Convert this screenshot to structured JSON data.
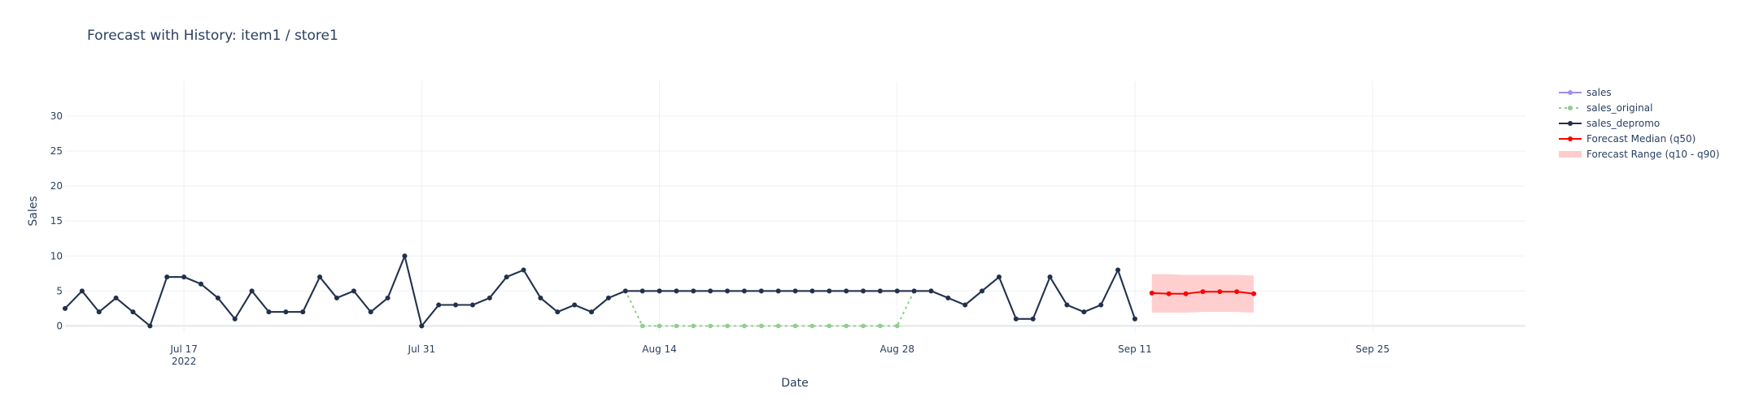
{
  "chart_data": {
    "type": "line",
    "title": "Forecast with History: item1 / store1",
    "xlabel": "Date",
    "ylabel": "Sales",
    "xlim": [
      "2022-07-10",
      "2022-10-04"
    ],
    "ylim": [
      -1,
      35
    ],
    "y_ticks": [
      0,
      5,
      10,
      15,
      20,
      25,
      30
    ],
    "x_ticks": [
      {
        "date": "2022-07-17",
        "label": "Jul 17",
        "sublabel": "2022"
      },
      {
        "date": "2022-07-31",
        "label": "Jul 31",
        "sublabel": ""
      },
      {
        "date": "2022-08-14",
        "label": "Aug 14",
        "sublabel": ""
      },
      {
        "date": "2022-08-28",
        "label": "Aug 28",
        "sublabel": ""
      },
      {
        "date": "2022-09-11",
        "label": "Sep 11",
        "sublabel": ""
      },
      {
        "date": "2022-09-25",
        "label": "Sep 25",
        "sublabel": ""
      }
    ],
    "grid": true,
    "legend_position": "right",
    "history_dates": [
      "2022-07-10",
      "2022-07-11",
      "2022-07-12",
      "2022-07-13",
      "2022-07-14",
      "2022-07-15",
      "2022-07-16",
      "2022-07-17",
      "2022-07-18",
      "2022-07-19",
      "2022-07-20",
      "2022-07-21",
      "2022-07-22",
      "2022-07-23",
      "2022-07-24",
      "2022-07-25",
      "2022-07-26",
      "2022-07-27",
      "2022-07-28",
      "2022-07-29",
      "2022-07-30",
      "2022-07-31",
      "2022-08-01",
      "2022-08-02",
      "2022-08-03",
      "2022-08-04",
      "2022-08-05",
      "2022-08-06",
      "2022-08-07",
      "2022-08-08",
      "2022-08-09",
      "2022-08-10",
      "2022-08-11",
      "2022-08-12",
      "2022-08-13",
      "2022-08-14",
      "2022-08-15",
      "2022-08-16",
      "2022-08-17",
      "2022-08-18",
      "2022-08-19",
      "2022-08-20",
      "2022-08-21",
      "2022-08-22",
      "2022-08-23",
      "2022-08-24",
      "2022-08-25",
      "2022-08-26",
      "2022-08-27",
      "2022-08-28",
      "2022-08-29",
      "2022-08-30",
      "2022-08-31",
      "2022-09-01",
      "2022-09-02",
      "2022-09-03",
      "2022-09-04",
      "2022-09-05",
      "2022-09-06",
      "2022-09-07",
      "2022-09-08",
      "2022-09-09",
      "2022-09-10",
      "2022-09-11"
    ],
    "forecast_dates": [
      "2022-09-12",
      "2022-09-13",
      "2022-09-14",
      "2022-09-15",
      "2022-09-16",
      "2022-09-17",
      "2022-09-18"
    ],
    "series": [
      {
        "name": "sales",
        "color": "#9d90f0",
        "dash": "solid",
        "values": [
          2.5,
          5,
          2,
          4,
          2,
          0,
          7,
          7,
          6,
          4,
          1,
          5,
          2,
          2,
          2,
          7,
          4,
          5,
          2,
          4,
          10,
          0,
          3,
          3,
          3,
          4,
          7,
          8,
          4,
          2,
          3,
          2,
          4,
          5,
          5,
          5,
          5,
          5,
          5,
          5,
          5,
          5,
          5,
          5,
          5,
          5,
          5,
          5,
          5,
          5,
          5,
          5,
          4,
          3,
          5,
          7,
          1,
          1,
          7,
          3,
          2,
          3,
          8,
          1
        ]
      },
      {
        "name": "sales_original",
        "color": "#8fce8f",
        "dash": "dot",
        "values": [
          2.5,
          5,
          2,
          4,
          2,
          0,
          7,
          7,
          6,
          4,
          1,
          5,
          2,
          2,
          2,
          7,
          4,
          5,
          2,
          4,
          10,
          0,
          3,
          3,
          3,
          4,
          7,
          8,
          4,
          2,
          3,
          2,
          4,
          5,
          0,
          0,
          0,
          0,
          0,
          0,
          0,
          0,
          0,
          0,
          0,
          0,
          0,
          0,
          0,
          0,
          5,
          5,
          4,
          3,
          5,
          7,
          1,
          1,
          7,
          3,
          2,
          3,
          8,
          1
        ]
      },
      {
        "name": "sales_depromo",
        "color": "#22314a",
        "dash": "solid",
        "values": [
          2.5,
          5,
          2,
          4,
          2,
          0,
          7,
          7,
          6,
          4,
          1,
          5,
          2,
          2,
          2,
          7,
          4,
          5,
          2,
          4,
          10,
          0,
          3,
          3,
          3,
          4,
          7,
          8,
          4,
          2,
          3,
          2,
          4,
          5,
          5,
          5,
          5,
          5,
          5,
          5,
          5,
          5,
          5,
          5,
          5,
          5,
          5,
          5,
          5,
          5,
          5,
          5,
          4,
          3,
          5,
          7,
          1,
          1,
          7,
          3,
          2,
          3,
          8,
          1
        ]
      },
      {
        "name": "Forecast Median (q50)",
        "color": "#ff0000",
        "dash": "solid",
        "values": [
          4.7,
          4.6,
          4.6,
          4.9,
          4.9,
          4.9,
          4.6
        ]
      },
      {
        "name": "Forecast Range (q10 - q90)",
        "color": "#ffcccc",
        "q10": [
          1.9,
          1.9,
          1.9,
          2.0,
          2.0,
          2.0,
          1.9
        ],
        "q90": [
          7.4,
          7.4,
          7.3,
          7.3,
          7.3,
          7.3,
          7.2
        ]
      }
    ]
  }
}
